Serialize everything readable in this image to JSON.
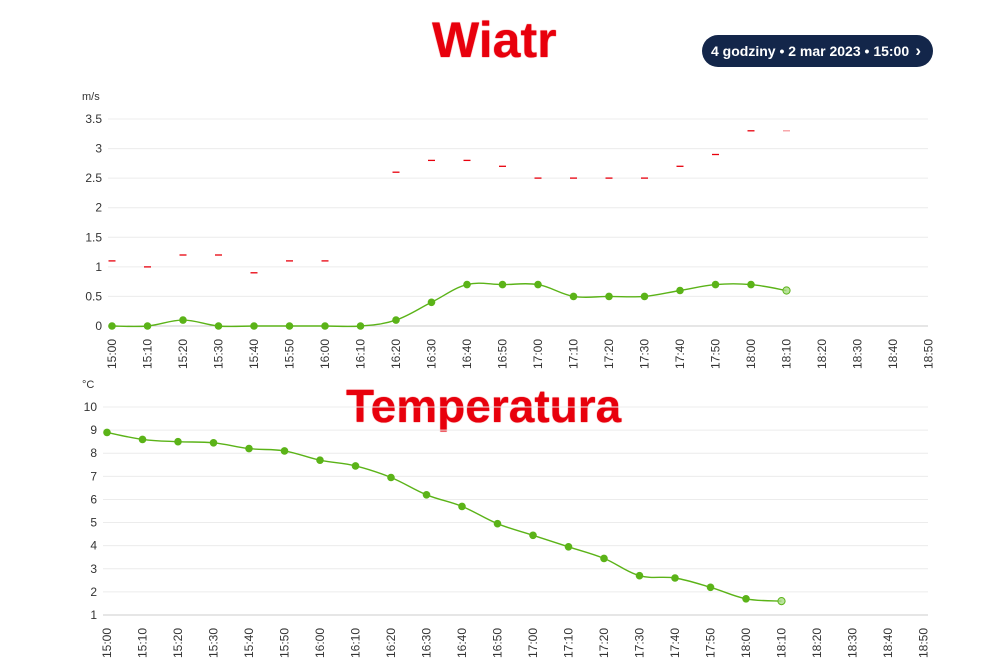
{
  "header": {
    "wind_title": "Wiatr",
    "temp_title": "Temperatura",
    "range_label": "4 godziny • 2 mar 2023 • 15:00",
    "chevron_glyph": "›"
  },
  "chart_data": [
    {
      "id": "wind",
      "type": "line",
      "ylabel": "m/s",
      "ylim": [
        0,
        3.5
      ],
      "yticks": [
        "0",
        "0.5",
        "1",
        "1.5",
        "2",
        "2.5",
        "3",
        "3.5"
      ],
      "x_labels": [
        "15:00",
        "15:10",
        "15:20",
        "15:30",
        "15:40",
        "15:50",
        "16:00",
        "16:10",
        "16:20",
        "16:30",
        "16:40",
        "16:50",
        "17:00",
        "17:10",
        "17:20",
        "17:30",
        "17:40",
        "17:50",
        "18:00",
        "18:10",
        "18:20",
        "18:30",
        "18:40",
        "18:50"
      ],
      "grid": true,
      "series": [
        {
          "kind": "line",
          "color": "#5bb318",
          "values": [
            0,
            0,
            0.1,
            0,
            0,
            0,
            0,
            0,
            0.1,
            0.4,
            0.7,
            0.7,
            0.7,
            0.5,
            0.5,
            0.5,
            0.6,
            0.7,
            0.7,
            0.6
          ]
        },
        {
          "kind": "dash-marker",
          "color": "#e8000c",
          "values": [
            1.1,
            1.0,
            1.2,
            1.2,
            0.9,
            1.1,
            1.1,
            null,
            2.6,
            2.8,
            2.8,
            2.7,
            2.5,
            2.5,
            2.5,
            2.5,
            2.7,
            2.9,
            3.3,
            3.3
          ]
        }
      ]
    },
    {
      "id": "temp",
      "type": "line",
      "ylabel": "°C",
      "ylim": [
        1,
        10
      ],
      "yticks": [
        "1",
        "2",
        "3",
        "4",
        "5",
        "6",
        "7",
        "8",
        "9",
        "10"
      ],
      "x_labels": [
        "15:00",
        "15:10",
        "15:20",
        "15:30",
        "15:40",
        "15:50",
        "16:00",
        "16:10",
        "16:20",
        "16:30",
        "16:40",
        "16:50",
        "17:00",
        "17:10",
        "17:20",
        "17:30",
        "17:40",
        "17:50",
        "18:00",
        "18:10",
        "18:20",
        "18:30",
        "18:40",
        "18:50"
      ],
      "grid": true,
      "series": [
        {
          "kind": "line",
          "color": "#5bb318",
          "values": [
            8.9,
            8.6,
            8.5,
            8.45,
            8.2,
            8.1,
            7.7,
            7.45,
            6.95,
            6.2,
            5.7,
            4.95,
            4.45,
            3.95,
            3.45,
            2.7,
            2.6,
            2.2,
            1.7,
            1.6
          ]
        }
      ]
    }
  ]
}
